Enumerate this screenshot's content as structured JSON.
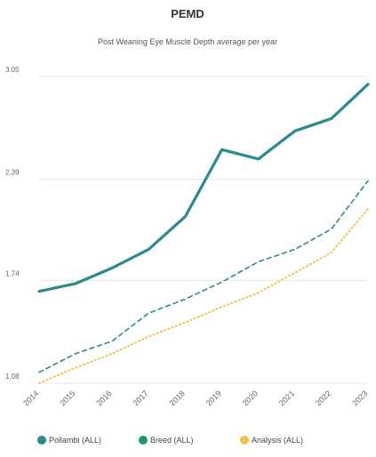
{
  "chart_data": {
    "type": "line",
    "title": "PEMD",
    "subtitle": "Post Weaning Eye Muscle Depth average per year",
    "xlabel": "",
    "ylabel": "",
    "categories": [
      "2014",
      "2015",
      "2016",
      "2017",
      "2018",
      "2019",
      "2020",
      "2021",
      "2022",
      "2023"
    ],
    "ylim": [
      1.08,
      3.05
    ],
    "yticks": [
      "3.05",
      "2.39",
      "1.74",
      "1.08"
    ],
    "grid": true,
    "legend": "bottom",
    "series": [
      {
        "name": "Pollambi (ALL)",
        "color": "#2a8a8c",
        "style": "solid",
        "values": [
          1.67,
          1.72,
          1.82,
          1.94,
          2.15,
          2.58,
          2.52,
          2.7,
          2.78,
          3.0
        ]
      },
      {
        "name": "Breed (ALL)",
        "color": "#2a8a8c",
        "legend_color": "#1e9a6a",
        "style": "dashed",
        "values": [
          1.15,
          1.27,
          1.35,
          1.53,
          1.62,
          1.73,
          1.86,
          1.94,
          2.07,
          2.38
        ]
      },
      {
        "name": "Analysis (ALL)",
        "color": "#f0c040",
        "style": "dotted",
        "values": [
          1.08,
          1.18,
          1.27,
          1.38,
          1.47,
          1.57,
          1.66,
          1.79,
          1.92,
          2.2
        ]
      }
    ]
  }
}
